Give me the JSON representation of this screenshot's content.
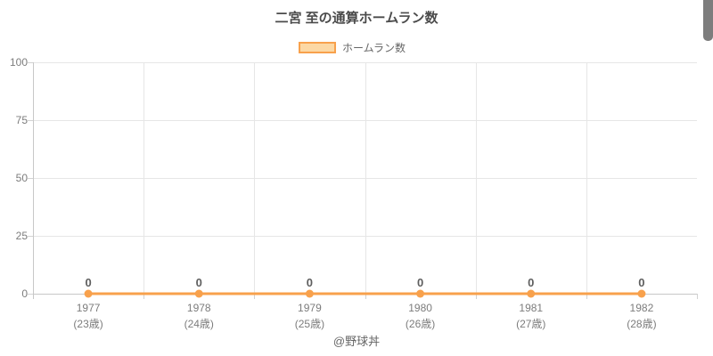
{
  "header": {
    "title": "二宮 至の通算ホームラン数"
  },
  "legend": {
    "label": "ホームラン数"
  },
  "footer": {
    "credit": "@野球丼"
  },
  "colors": {
    "accent_line": "#f8a14c",
    "legend_fill": "#fcd8a4",
    "gridline": "#e6e6e6",
    "axis_line": "#c8c8c8",
    "tick_label": "#7c7c7c",
    "value_label": "#5e5e5e",
    "title_text": "#4b4b4b",
    "scrollbar": "#7d7d7d"
  },
  "chart_data": {
    "type": "line",
    "title": "二宮 至の通算ホームラン数",
    "categories": [
      "1977",
      "1978",
      "1979",
      "1980",
      "1981",
      "1982"
    ],
    "category_sublabels": [
      "(23歳)",
      "(24歳)",
      "(25歳)",
      "(26歳)",
      "(27歳)",
      "(28歳)"
    ],
    "series": [
      {
        "name": "ホームラン数",
        "values": [
          0,
          0,
          0,
          0,
          0,
          0
        ],
        "color": "#f8a14c"
      }
    ],
    "point_labels": [
      "0",
      "0",
      "0",
      "0",
      "0",
      "0"
    ],
    "xlabel": "",
    "ylabel": "",
    "ylim": [
      0,
      100
    ],
    "yticks": [
      0,
      25,
      50,
      75,
      100
    ],
    "grid": true,
    "legend_position": "top"
  }
}
